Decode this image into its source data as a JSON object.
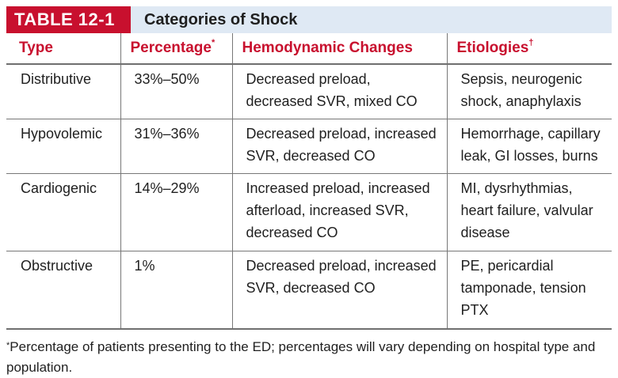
{
  "table": {
    "label": "TABLE 12-1",
    "caption": "Categories of Shock",
    "headers": [
      {
        "text": "Type",
        "mark": ""
      },
      {
        "text": "Percentage",
        "mark": "*"
      },
      {
        "text": "Hemodynamic Changes",
        "mark": ""
      },
      {
        "text": "Etiologies",
        "mark": "†"
      }
    ],
    "rows": [
      [
        "Distributive",
        "33%–50%",
        "Decreased preload, decreased SVR, mixed CO",
        "Sepsis, neurogenic shock, anaphylaxis"
      ],
      [
        "Hypovolemic",
        "31%–36%",
        "Decreased preload, increased SVR, decreased CO",
        "Hemorrhage, capillary leak, GI losses, burns"
      ],
      [
        "Cardiogenic",
        "14%–29%",
        "Increased preload, increased afterload, increased SVR, decreased CO",
        "MI, dysrhythmias, heart failure, valvular disease"
      ],
      [
        "Obstructive",
        "1%",
        "Decreased preload, increased SVR, decreased CO",
        "PE, pericardial tamponade, tension PTX"
      ]
    ]
  },
  "footnote": {
    "mark": "*",
    "text": "Percentage of patients presenting to the ED; percentages will vary depending on hospital type and population."
  },
  "colors": {
    "accent": "#c8102e",
    "title_band": "#dfe9f4"
  }
}
